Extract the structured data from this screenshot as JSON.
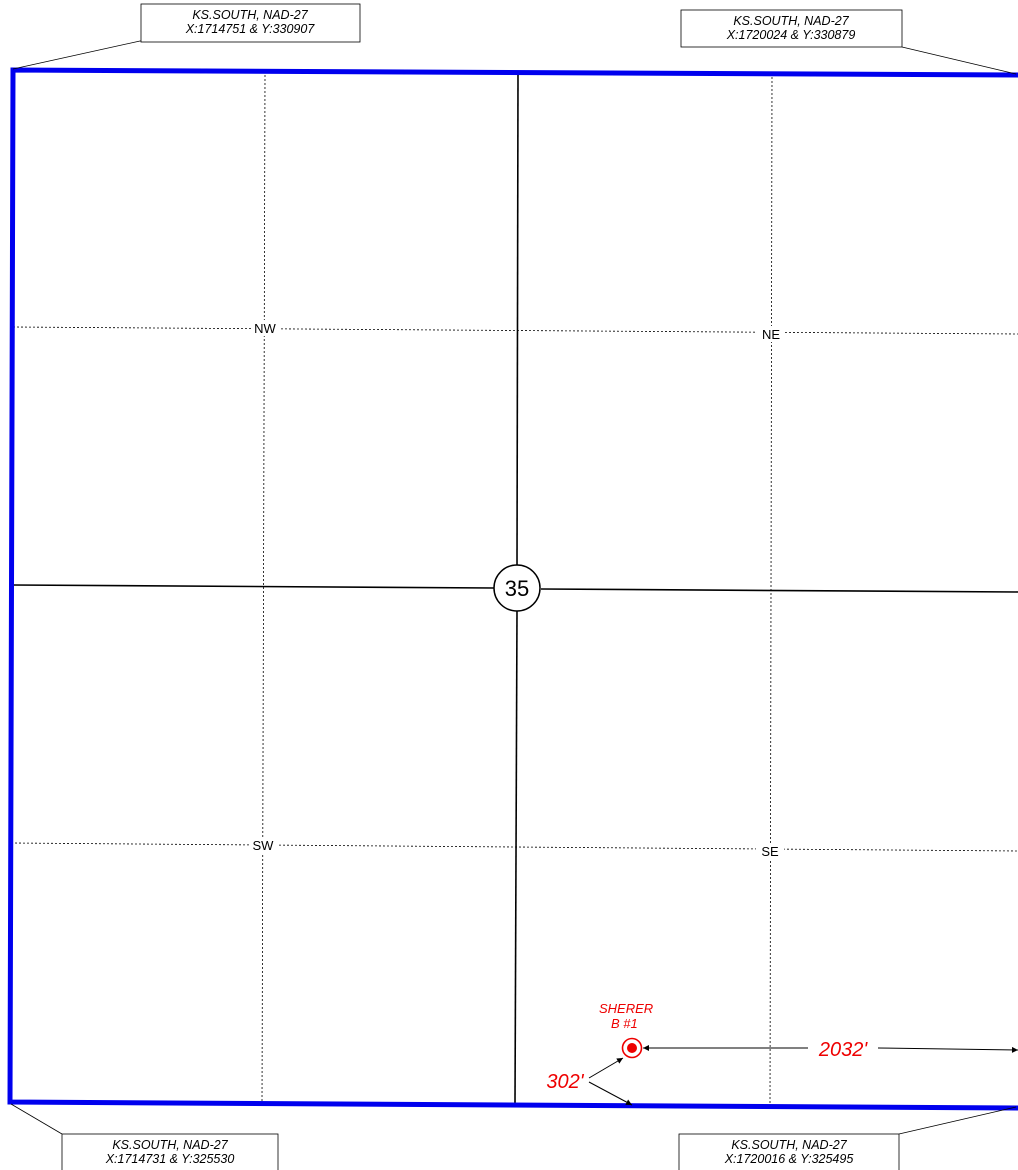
{
  "section": {
    "number": "35"
  },
  "quarters": {
    "nw": "NW",
    "ne": "NE",
    "sw": "SW",
    "se": "SE"
  },
  "corners": {
    "top_left": {
      "line1": "KS.SOUTH, NAD-27",
      "line2": "X:1714751 & Y:330907"
    },
    "top_right": {
      "line1": "KS.SOUTH, NAD-27",
      "line2": "X:1720024 & Y:330879"
    },
    "bottom_left": {
      "line1": "KS.SOUTH, NAD-27",
      "line2": "X:1714731 & Y:325530"
    },
    "bottom_right": {
      "line1": "KS.SOUTH, NAD-27",
      "line2": "X:1720016 & Y:325495"
    }
  },
  "well": {
    "name_line1": "SHERER",
    "name_line2": "B #1"
  },
  "dimensions": {
    "from_east": "2032'",
    "from_south": "302'"
  },
  "colors": {
    "boundary": "#0000ee",
    "well": "#ee0000",
    "lines": "#000000"
  }
}
